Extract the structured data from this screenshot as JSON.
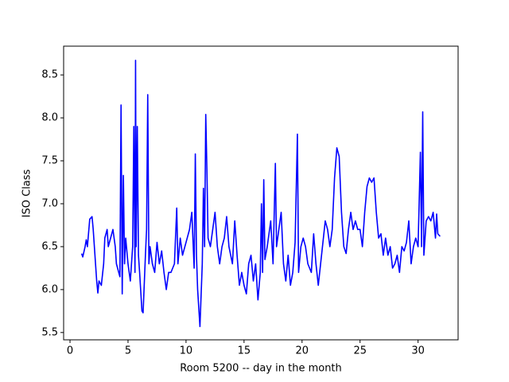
{
  "chart_data": {
    "type": "line",
    "xlabel": "Room 5200 -- day in the month",
    "ylabel": "ISO Class",
    "color": "#0000ff",
    "xlim": [
      -0.55,
      33.45
    ],
    "ylim": [
      5.415,
      8.835
    ],
    "xticks": [
      0,
      5,
      10,
      15,
      20,
      25,
      30
    ],
    "yticks": [
      5.5,
      {
        "value": 6,
        "label": "6.0"
      },
      6.5,
      {
        "value": 7,
        "label": "7.0"
      },
      7.5,
      {
        "value": 8,
        "label": "8.0"
      },
      8.5
    ],
    "x": [
      1.0,
      1.1,
      1.3,
      1.4,
      1.5,
      1.7,
      1.9,
      2.0,
      2.2,
      2.3,
      2.4,
      2.5,
      2.7,
      2.9,
      3.0,
      3.2,
      3.3,
      3.5,
      3.7,
      3.9,
      4.0,
      4.2,
      4.3,
      4.4,
      4.5,
      4.6,
      4.7,
      4.8,
      5.0,
      5.2,
      5.4,
      5.5,
      5.6,
      5.65,
      5.7,
      5.8,
      5.9,
      6.0,
      6.2,
      6.3,
      6.5,
      6.6,
      6.7,
      6.8,
      6.9,
      7.1,
      7.3,
      7.5,
      7.7,
      7.9,
      8.1,
      8.3,
      8.5,
      8.7,
      9.0,
      9.2,
      9.3,
      9.5,
      9.7,
      10.0,
      10.3,
      10.5,
      10.7,
      10.8,
      10.9,
      11.0,
      11.2,
      11.4,
      11.5,
      11.6,
      11.7,
      11.8,
      11.9,
      12.1,
      12.3,
      12.5,
      12.7,
      12.9,
      13.1,
      13.3,
      13.5,
      13.7,
      14.0,
      14.2,
      14.4,
      14.6,
      14.8,
      15.0,
      15.2,
      15.4,
      15.6,
      15.8,
      16.0,
      16.2,
      16.4,
      16.5,
      16.6,
      16.7,
      16.8,
      17.0,
      17.3,
      17.5,
      17.7,
      17.8,
      18.0,
      18.2,
      18.4,
      18.6,
      18.8,
      19.0,
      19.2,
      19.4,
      19.6,
      19.7,
      19.9,
      20.1,
      20.3,
      20.5,
      20.8,
      21.0,
      21.2,
      21.4,
      21.6,
      22.0,
      22.2,
      22.4,
      22.6,
      22.8,
      23.0,
      23.2,
      23.4,
      23.6,
      23.8,
      24.0,
      24.2,
      24.4,
      24.6,
      24.8,
      25.0,
      25.2,
      25.4,
      25.6,
      25.8,
      26.0,
      26.2,
      26.4,
      26.6,
      26.8,
      27.0,
      27.2,
      27.4,
      27.6,
      27.8,
      28.0,
      28.2,
      28.4,
      28.6,
      28.8,
      29.0,
      29.2,
      29.4,
      29.6,
      29.8,
      30.0,
      30.2,
      30.3,
      30.4,
      30.5,
      30.7,
      30.9,
      31.1,
      31.3,
      31.5,
      31.6,
      31.7,
      31.9
    ],
    "values": [
      6.42,
      6.38,
      6.5,
      6.58,
      6.5,
      6.82,
      6.85,
      6.7,
      6.3,
      6.1,
      5.96,
      6.1,
      6.05,
      6.3,
      6.6,
      6.7,
      6.5,
      6.6,
      6.7,
      6.5,
      6.3,
      6.2,
      6.15,
      8.15,
      5.95,
      7.33,
      6.3,
      6.6,
      6.3,
      6.1,
      6.5,
      7.9,
      6.2,
      8.67,
      6.5,
      7.9,
      6.4,
      6.2,
      5.75,
      5.73,
      6.4,
      6.7,
      8.27,
      6.3,
      6.5,
      6.3,
      6.2,
      6.55,
      6.3,
      6.45,
      6.2,
      6.0,
      6.2,
      6.2,
      6.3,
      6.95,
      6.3,
      6.6,
      6.4,
      6.55,
      6.7,
      6.9,
      6.25,
      7.58,
      6.4,
      6.0,
      5.57,
      6.3,
      7.18,
      6.5,
      8.04,
      7.4,
      6.6,
      6.5,
      6.7,
      6.9,
      6.5,
      6.3,
      6.5,
      6.6,
      6.85,
      6.5,
      6.3,
      6.8,
      6.4,
      6.05,
      6.2,
      6.05,
      5.95,
      6.3,
      6.4,
      6.1,
      6.3,
      5.88,
      6.2,
      7.0,
      6.2,
      7.28,
      6.35,
      6.5,
      6.8,
      6.3,
      7.47,
      6.5,
      6.7,
      6.9,
      6.3,
      6.1,
      6.4,
      6.05,
      6.2,
      6.55,
      7.81,
      6.2,
      6.5,
      6.6,
      6.5,
      6.3,
      6.2,
      6.65,
      6.3,
      6.05,
      6.3,
      6.8,
      6.7,
      6.5,
      6.7,
      7.3,
      7.65,
      7.55,
      6.9,
      6.5,
      6.42,
      6.7,
      6.9,
      6.7,
      6.8,
      6.7,
      6.7,
      6.5,
      6.9,
      7.2,
      7.3,
      7.25,
      7.3,
      6.9,
      6.6,
      6.65,
      6.4,
      6.6,
      6.4,
      6.5,
      6.25,
      6.3,
      6.4,
      6.2,
      6.5,
      6.45,
      6.55,
      6.8,
      6.3,
      6.5,
      6.6,
      6.5,
      7.6,
      6.5,
      8.07,
      6.4,
      6.8,
      6.85,
      6.8,
      6.9,
      6.6,
      6.88,
      6.65,
      6.62
    ]
  }
}
